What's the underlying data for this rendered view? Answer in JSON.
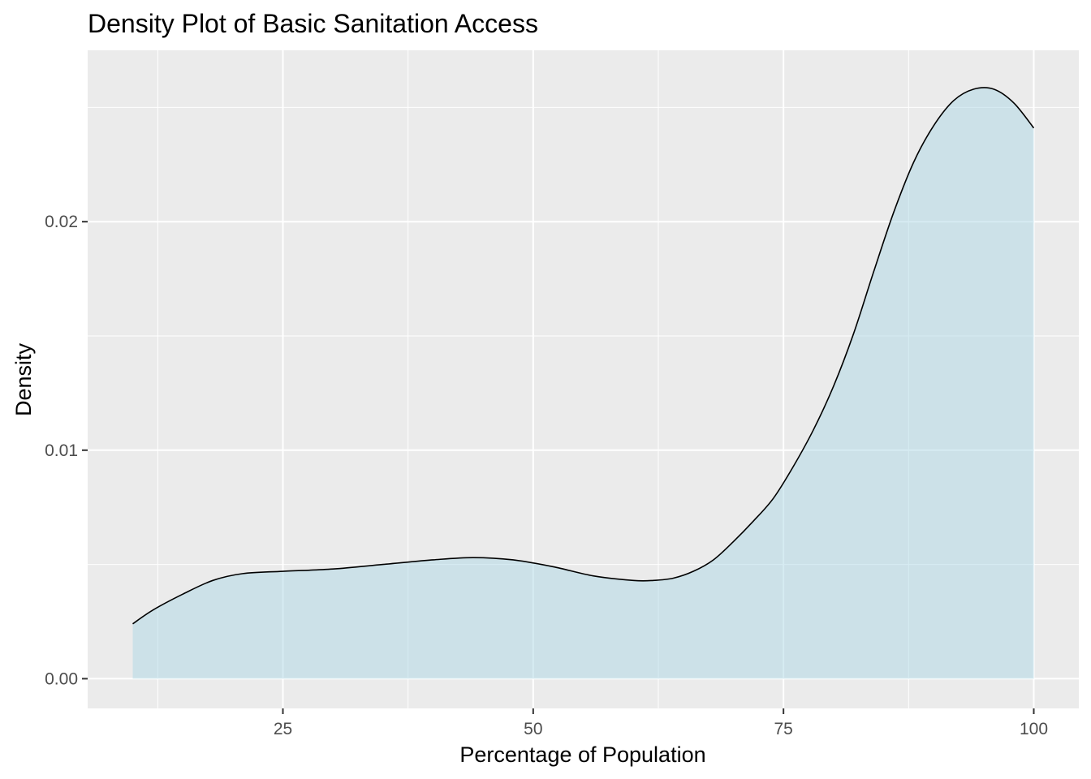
{
  "chart_data": {
    "type": "area",
    "title": "Density Plot of Basic Sanitation Access",
    "xlabel": "Percentage of Population",
    "ylabel": "Density",
    "xlim": [
      5.5,
      104.5
    ],
    "ylim": [
      -0.0013,
      0.0275
    ],
    "x_ticks": [
      25,
      50,
      75,
      100
    ],
    "x_minor_ticks": [
      12.5,
      37.5,
      62.5,
      87.5
    ],
    "y_ticks": [
      0.0,
      0.01,
      0.02
    ],
    "y_minor_ticks": [
      0.005,
      0.015,
      0.025
    ],
    "x_tick_labels": [
      "25",
      "50",
      "75",
      "100"
    ],
    "y_tick_labels": [
      "0.00",
      "0.01",
      "0.02"
    ],
    "grid": true,
    "series": [
      {
        "x": [
          10,
          12,
          15,
          18,
          21,
          25,
          30,
          35,
          40,
          44,
          48,
          52,
          56,
          60,
          62,
          64,
          66,
          68,
          70,
          72,
          74,
          76,
          78,
          80,
          82,
          84,
          86,
          88,
          90,
          92,
          94,
          96,
          98,
          100
        ],
        "y": [
          0.0024,
          0.003,
          0.0037,
          0.0043,
          0.0046,
          0.0047,
          0.0048,
          0.005,
          0.0052,
          0.0053,
          0.0052,
          0.0049,
          0.0045,
          0.0043,
          0.0043,
          0.0044,
          0.0047,
          0.0052,
          0.006,
          0.0069,
          0.0079,
          0.0093,
          0.0109,
          0.0128,
          0.0151,
          0.0178,
          0.0204,
          0.0226,
          0.0242,
          0.0253,
          0.0258,
          0.0258,
          0.0252,
          0.0241
        ]
      }
    ],
    "colors": {
      "fill": "#add8e6",
      "fill_opacity": 0.5,
      "line": "#000000",
      "panel": "#ebebeb",
      "grid": "#ffffff",
      "tick_text": "#4d4d4d",
      "tick_mark": "#333333"
    }
  }
}
